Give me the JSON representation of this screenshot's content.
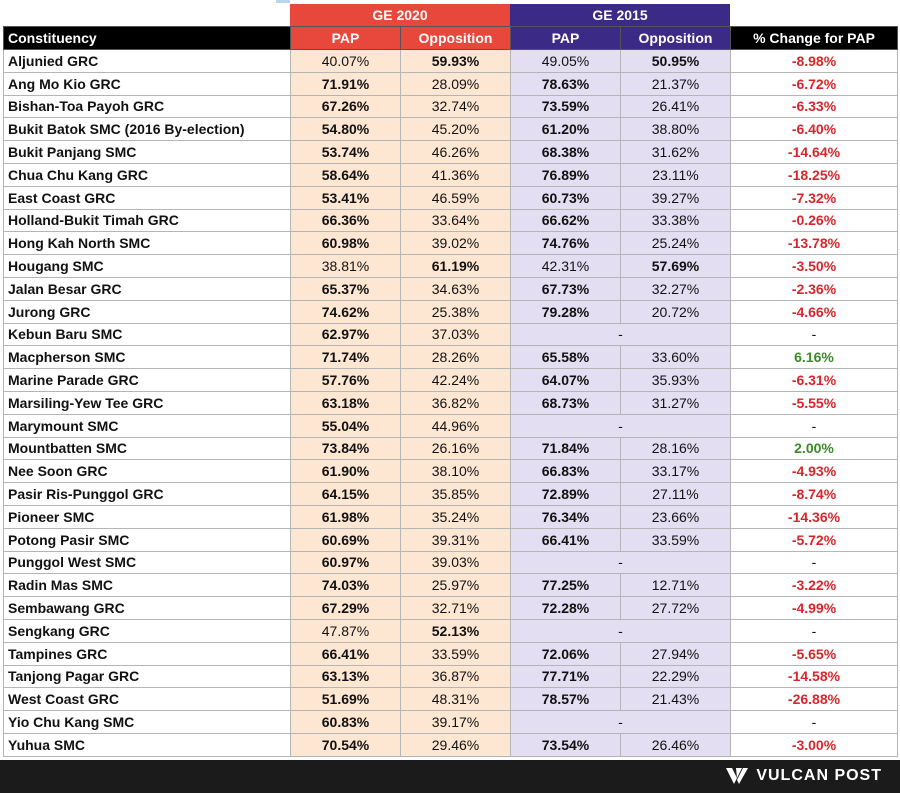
{
  "headers": {
    "group_2020": "GE 2020",
    "group_2015": "GE 2015",
    "constituency": "Constituency",
    "pap_2020": "PAP",
    "opposition_2020": "Opposition",
    "pap_2015": "PAP",
    "opposition_2015": "Opposition",
    "change": "% Change for PAP"
  },
  "colors": {
    "ge2020_header": "#e8473c",
    "ge2015_header": "#3b2a86",
    "ge2020_fill": "#fde7d3",
    "ge2015_fill": "#e3def2",
    "negative": "#d7262b",
    "positive": "#3b8a27"
  },
  "rows": [
    {
      "name": "Aljunied GRC",
      "pap20": "40.07%",
      "opp20": "59.93%",
      "win20": "opp",
      "pap15": "49.05%",
      "opp15": "50.95%",
      "win15": "opp",
      "chg": "-8.98%",
      "dir": "neg"
    },
    {
      "name": "Ang Mo Kio GRC",
      "pap20": "71.91%",
      "opp20": "28.09%",
      "win20": "pap",
      "pap15": "78.63%",
      "opp15": "21.37%",
      "win15": "pap",
      "chg": "-6.72%",
      "dir": "neg"
    },
    {
      "name": "Bishan-Toa Payoh GRC",
      "pap20": "67.26%",
      "opp20": "32.74%",
      "win20": "pap",
      "pap15": "73.59%",
      "opp15": "26.41%",
      "win15": "pap",
      "chg": "-6.33%",
      "dir": "neg"
    },
    {
      "name": "Bukit Batok SMC (2016 By-election)",
      "pap20": "54.80%",
      "opp20": "45.20%",
      "win20": "pap",
      "pap15": "61.20%",
      "opp15": "38.80%",
      "win15": "pap",
      "chg": "-6.40%",
      "dir": "neg"
    },
    {
      "name": "Bukit Panjang SMC",
      "pap20": "53.74%",
      "opp20": "46.26%",
      "win20": "pap",
      "pap15": "68.38%",
      "opp15": "31.62%",
      "win15": "pap",
      "chg": "-14.64%",
      "dir": "neg"
    },
    {
      "name": "Chua Chu Kang GRC",
      "pap20": "58.64%",
      "opp20": "41.36%",
      "win20": "pap",
      "pap15": "76.89%",
      "opp15": "23.11%",
      "win15": "pap",
      "chg": "-18.25%",
      "dir": "neg"
    },
    {
      "name": "East Coast GRC",
      "pap20": "53.41%",
      "opp20": "46.59%",
      "win20": "pap",
      "pap15": "60.73%",
      "opp15": "39.27%",
      "win15": "pap",
      "chg": "-7.32%",
      "dir": "neg"
    },
    {
      "name": "Holland-Bukit Timah GRC",
      "pap20": "66.36%",
      "opp20": "33.64%",
      "win20": "pap",
      "pap15": "66.62%",
      "opp15": "33.38%",
      "win15": "pap",
      "chg": "-0.26%",
      "dir": "neg"
    },
    {
      "name": "Hong Kah North SMC",
      "pap20": "60.98%",
      "opp20": "39.02%",
      "win20": "pap",
      "pap15": "74.76%",
      "opp15": "25.24%",
      "win15": "pap",
      "chg": "-13.78%",
      "dir": "neg"
    },
    {
      "name": "Hougang SMC",
      "pap20": "38.81%",
      "opp20": "61.19%",
      "win20": "opp",
      "pap15": "42.31%",
      "opp15": "57.69%",
      "win15": "opp",
      "chg": "-3.50%",
      "dir": "neg"
    },
    {
      "name": "Jalan Besar GRC",
      "pap20": "65.37%",
      "opp20": "34.63%",
      "win20": "pap",
      "pap15": "67.73%",
      "opp15": "32.27%",
      "win15": "pap",
      "chg": "-2.36%",
      "dir": "neg"
    },
    {
      "name": "Jurong GRC",
      "pap20": "74.62%",
      "opp20": "25.38%",
      "win20": "pap",
      "pap15": "79.28%",
      "opp15": "20.72%",
      "win15": "pap",
      "chg": "-4.66%",
      "dir": "neg"
    },
    {
      "name": "Kebun Baru SMC",
      "pap20": "62.97%",
      "opp20": "37.03%",
      "win20": "pap",
      "merged15": "-",
      "chg": "-",
      "dir": "na"
    },
    {
      "name": "Macpherson SMC",
      "pap20": "71.74%",
      "opp20": "28.26%",
      "win20": "pap",
      "pap15": "65.58%",
      "opp15": "33.60%",
      "win15": "pap",
      "chg": "6.16%",
      "dir": "pos"
    },
    {
      "name": "Marine Parade GRC",
      "pap20": "57.76%",
      "opp20": "42.24%",
      "win20": "pap",
      "pap15": "64.07%",
      "opp15": "35.93%",
      "win15": "pap",
      "chg": "-6.31%",
      "dir": "neg"
    },
    {
      "name": "Marsiling-Yew Tee GRC",
      "pap20": "63.18%",
      "opp20": "36.82%",
      "win20": "pap",
      "pap15": "68.73%",
      "opp15": "31.27%",
      "win15": "pap",
      "chg": "-5.55%",
      "dir": "neg"
    },
    {
      "name": "Marymount SMC",
      "pap20": "55.04%",
      "opp20": "44.96%",
      "win20": "pap",
      "merged15": "-",
      "chg": "-",
      "dir": "na"
    },
    {
      "name": "Mountbatten SMC",
      "pap20": "73.84%",
      "opp20": "26.16%",
      "win20": "pap",
      "pap15": "71.84%",
      "opp15": "28.16%",
      "win15": "pap",
      "chg": "2.00%",
      "dir": "pos"
    },
    {
      "name": "Nee Soon GRC",
      "pap20": "61.90%",
      "opp20": "38.10%",
      "win20": "pap",
      "pap15": "66.83%",
      "opp15": "33.17%",
      "win15": "pap",
      "chg": "-4.93%",
      "dir": "neg"
    },
    {
      "name": "Pasir Ris-Punggol GRC",
      "pap20": "64.15%",
      "opp20": "35.85%",
      "win20": "pap",
      "pap15": "72.89%",
      "opp15": "27.11%",
      "win15": "pap",
      "chg": "-8.74%",
      "dir": "neg"
    },
    {
      "name": "Pioneer SMC",
      "pap20": "61.98%",
      "opp20": "35.24%",
      "win20": "pap",
      "pap15": "76.34%",
      "opp15": "23.66%",
      "win15": "pap",
      "chg": "-14.36%",
      "dir": "neg"
    },
    {
      "name": "Potong Pasir SMC",
      "pap20": "60.69%",
      "opp20": "39.31%",
      "win20": "pap",
      "pap15": "66.41%",
      "opp15": "33.59%",
      "win15": "pap",
      "chg": "-5.72%",
      "dir": "neg"
    },
    {
      "name": "Punggol West SMC",
      "pap20": "60.97%",
      "opp20": "39.03%",
      "win20": "pap",
      "merged15": "-",
      "chg": "-",
      "dir": "na"
    },
    {
      "name": "Radin Mas SMC",
      "pap20": "74.03%",
      "opp20": "25.97%",
      "win20": "pap",
      "pap15": "77.25%",
      "opp15": "12.71%",
      "win15": "pap",
      "chg": "-3.22%",
      "dir": "neg"
    },
    {
      "name": "Sembawang GRC",
      "pap20": "67.29%",
      "opp20": "32.71%",
      "win20": "pap",
      "pap15": "72.28%",
      "opp15": "27.72%",
      "win15": "pap",
      "chg": "-4.99%",
      "dir": "neg"
    },
    {
      "name": "Sengkang GRC",
      "pap20": "47.87%",
      "opp20": "52.13%",
      "win20": "opp",
      "merged15": "-",
      "chg": "-",
      "dir": "na"
    },
    {
      "name": "Tampines GRC",
      "pap20": "66.41%",
      "opp20": "33.59%",
      "win20": "pap",
      "pap15": "72.06%",
      "opp15": "27.94%",
      "win15": "pap",
      "chg": "-5.65%",
      "dir": "neg"
    },
    {
      "name": "Tanjong Pagar GRC",
      "pap20": "63.13%",
      "opp20": "36.87%",
      "win20": "pap",
      "pap15": "77.71%",
      "opp15": "22.29%",
      "win15": "pap",
      "chg": "-14.58%",
      "dir": "neg"
    },
    {
      "name": "West Coast GRC",
      "pap20": "51.69%",
      "opp20": "48.31%",
      "win20": "pap",
      "pap15": "78.57%",
      "opp15": "21.43%",
      "win15": "pap",
      "chg": "-26.88%",
      "dir": "neg"
    },
    {
      "name": "Yio Chu Kang SMC",
      "pap20": "60.83%",
      "opp20": "39.17%",
      "win20": "pap",
      "merged15": "-",
      "chg": "-",
      "dir": "na"
    },
    {
      "name": "Yuhua SMC",
      "pap20": "70.54%",
      "opp20": "29.46%",
      "win20": "pap",
      "pap15": "73.54%",
      "opp15": "26.46%",
      "win15": "pap",
      "chg": "-3.00%",
      "dir": "neg"
    }
  ],
  "footer": {
    "brand": "VULCAN POST",
    "logo_icon": "vulcan-post-logo-icon"
  }
}
